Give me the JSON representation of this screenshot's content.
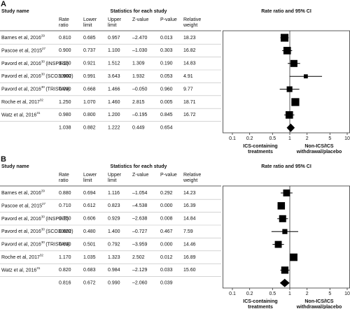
{
  "chart_data": [
    {
      "type": "forest",
      "panel": "A",
      "study_header": "Study name",
      "group_header": "Statistics for each study",
      "plot_header": "Rate ratio and 95% CI",
      "column_headers": {
        "rate_ratio": [
          "Rate",
          "ratio"
        ],
        "lower": [
          "Lower",
          "limit"
        ],
        "upper": [
          "Upper",
          "limit"
        ],
        "z": [
          "Z-value"
        ],
        "p": [
          "P-value"
        ],
        "weight": [
          "Relative",
          "weight"
        ]
      },
      "studies": [
        {
          "name": "Barnes et al, 2016",
          "ref": "29"
        },
        {
          "name": "Pascoe et al, 2015",
          "ref": "27"
        },
        {
          "name": "Pavord et al, 2016",
          "ref": "30",
          "suffix": "(INSPIRE)"
        },
        {
          "name": "Pavord et al, 2016",
          "ref": "30",
          "suffix": "(SCO30002)"
        },
        {
          "name": "Pavord et al, 2016",
          "ref": "30",
          "suffix": "(TRISTAN)"
        },
        {
          "name": "Roche et al, 2017",
          "ref": "32"
        },
        {
          "name": "Watz et al, 2016",
          "ref": "31"
        },
        null
      ],
      "rate_ratio": {
        "values": [
          0.81,
          0.9,
          1.18,
          1.9,
          0.99,
          1.25,
          0.98,
          1.038
        ],
        "value_labels": [
          "0.810",
          "0.900",
          "1.180",
          "1.900",
          "0.990",
          "1.250",
          "0.980",
          "1.038"
        ]
      },
      "lower": {
        "values": [
          0.685,
          0.737,
          0.921,
          0.991,
          0.668,
          1.07,
          0.8,
          0.882
        ],
        "value_labels": [
          "0.685",
          "0.737",
          "0.921",
          "0.991",
          "0.668",
          "1.070",
          "0.800",
          "0.882"
        ]
      },
      "upper": {
        "values": [
          0.957,
          1.1,
          1.512,
          3.643,
          1.466,
          1.46,
          1.2,
          1.222
        ],
        "value_labels": [
          "0.957",
          "1.100",
          "1.512",
          "3.643",
          "1.466",
          "1.460",
          "1.200",
          "1.222"
        ]
      },
      "z": {
        "values": [
          -2.47,
          -1.03,
          1.309,
          1.932,
          -0.05,
          2.815,
          -0.195,
          0.449
        ],
        "value_labels": [
          "–2.470",
          "–1.030",
          "1.309",
          "1.932",
          "–0.050",
          "2.815",
          "–0.195",
          "0.449"
        ]
      },
      "p": {
        "values": [
          0.013,
          0.303,
          0.19,
          0.053,
          0.96,
          0.005,
          0.845,
          0.654
        ],
        "value_labels": [
          "0.013",
          "0.303",
          "0.190",
          "0.053",
          "0.960",
          "0.005",
          "0.845",
          "0.654"
        ]
      },
      "weight": {
        "values": [
          18.23,
          16.82,
          14.83,
          4.91,
          9.77,
          18.71,
          16.72,
          null
        ],
        "value_labels": [
          "18.23",
          "16.82",
          "14.83",
          "4.91",
          "9.77",
          "18.71",
          "16.72",
          null
        ]
      },
      "xscale": "log",
      "xlim": [
        0.1,
        10
      ],
      "xticks": [
        0.1,
        0.2,
        0.5,
        1,
        2,
        5,
        10
      ],
      "reference_line": 1,
      "xlabel_left": [
        "ICS-containing",
        "treatments"
      ],
      "xlabel_right": [
        "Non-ICS/ICS",
        "withdrawal/placebo"
      ],
      "color": "#000000"
    },
    {
      "type": "forest",
      "panel": "B",
      "study_header": "Study name",
      "group_header": "Statistics for each study",
      "plot_header": "Rate ratio and 95% CI",
      "column_headers": {
        "rate_ratio": [
          "Rate",
          "ratio"
        ],
        "lower": [
          "Lower",
          "limit"
        ],
        "upper": [
          "Upper",
          "limit"
        ],
        "z": [
          "Z-value"
        ],
        "p": [
          "P-value"
        ],
        "weight": [
          "Relative",
          "weight"
        ]
      },
      "studies": [
        {
          "name": "Barnes et al, 2016",
          "ref": "29"
        },
        {
          "name": "Pascoe et al, 2015",
          "ref": "27"
        },
        {
          "name": "Pavord et al, 2016",
          "ref": "30",
          "suffix": "(INSPIRE)"
        },
        {
          "name": "Pavord et al, 2016",
          "ref": "30",
          "suffix": "(SCO30002)"
        },
        {
          "name": "Pavord et al, 2016",
          "ref": "30",
          "suffix": "(TRISTAN)"
        },
        {
          "name": "Roche et al, 2017",
          "ref": "32"
        },
        {
          "name": "Watz et al, 2016",
          "ref": "31"
        },
        null
      ],
      "rate_ratio": {
        "values": [
          0.88,
          0.71,
          0.75,
          0.82,
          0.63,
          1.17,
          0.82,
          0.816
        ],
        "value_labels": [
          "0.880",
          "0.710",
          "0.750",
          "0.820",
          "0.630",
          "1.170",
          "0.820",
          "0.816"
        ]
      },
      "lower": {
        "values": [
          0.694,
          0.612,
          0.606,
          0.48,
          0.501,
          1.035,
          0.683,
          0.672
        ],
        "value_labels": [
          "0.694",
          "0.612",
          "0.606",
          "0.480",
          "0.501",
          "1.035",
          "0.683",
          "0.672"
        ]
      },
      "upper": {
        "values": [
          1.116,
          0.823,
          0.929,
          1.4,
          0.792,
          1.323,
          0.984,
          0.99
        ],
        "value_labels": [
          "1.116",
          "0.823",
          "0.929",
          "1.400",
          "0.792",
          "1.323",
          "0.984",
          "0.990"
        ]
      },
      "z": {
        "values": [
          -1.054,
          -4.538,
          -2.638,
          -0.727,
          -3.959,
          2.502,
          -2.129,
          -2.06
        ],
        "value_labels": [
          "–1.054",
          "–4.538",
          "–2.638",
          "–0.727",
          "–3.959",
          "2.502",
          "–2.129",
          "–2.060"
        ]
      },
      "p": {
        "values": [
          0.292,
          0,
          0.008,
          0.467,
          0,
          0.012,
          0.033,
          0.039
        ],
        "value_labels": [
          "0.292",
          "0.000",
          "0.008",
          "0.467",
          "0.000",
          "0.012",
          "0.033",
          "0.039"
        ]
      },
      "weight": {
        "values": [
          14.23,
          16.39,
          14.84,
          7.59,
          14.46,
          16.89,
          15.6,
          null
        ],
        "value_labels": [
          "14.23",
          "16.39",
          "14.84",
          "7.59",
          "14.46",
          "16.89",
          "15.60",
          null
        ]
      },
      "xscale": "log",
      "xlim": [
        0.1,
        10
      ],
      "xticks": [
        0.1,
        0.2,
        0.5,
        1,
        2,
        5,
        10
      ],
      "reference_line": 1,
      "xlabel_left": [
        "ICS-containing",
        "treatments"
      ],
      "xlabel_right": [
        "Non-ICS/ICS",
        "withdrawal/placebo"
      ],
      "color": "#000000"
    }
  ]
}
